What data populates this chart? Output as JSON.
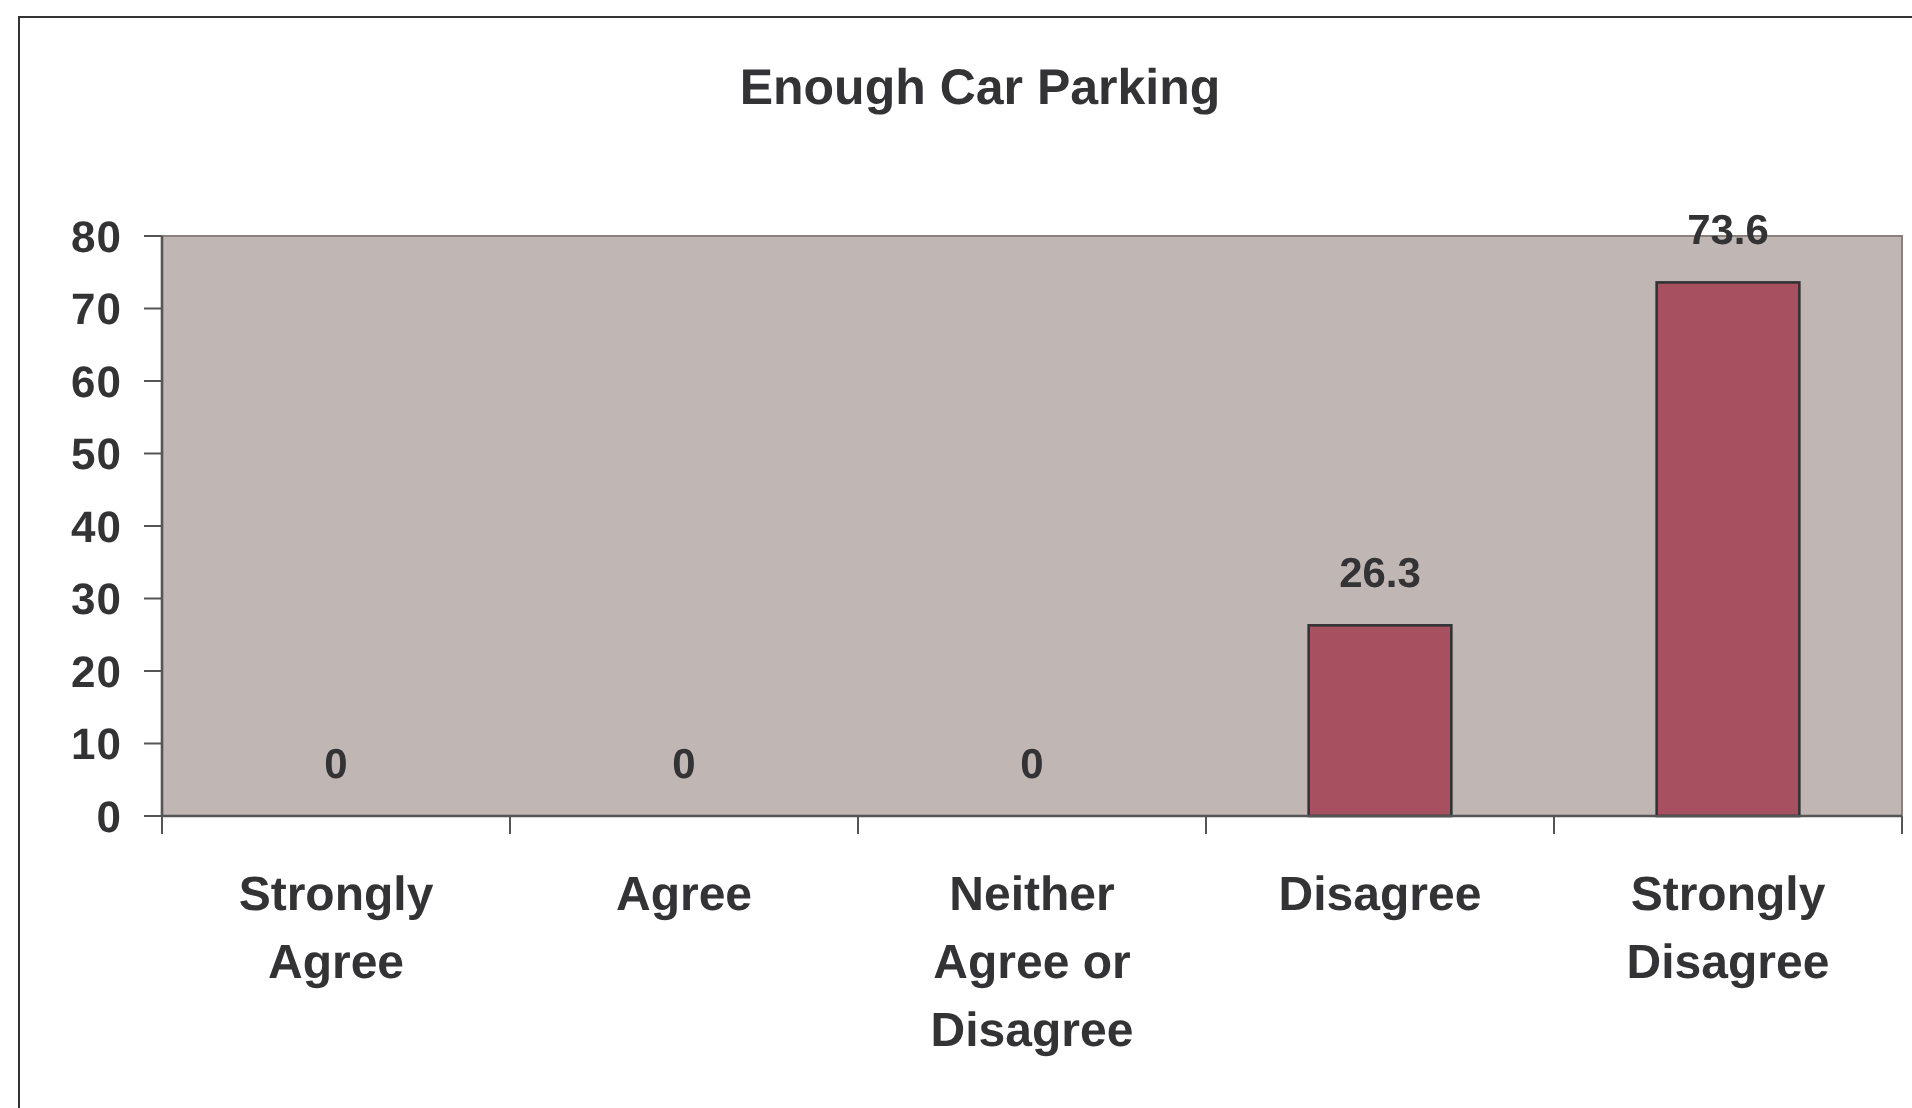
{
  "chart_data": {
    "type": "bar",
    "title": "Enough Car Parking",
    "categories": [
      "Strongly Agree",
      "Agree",
      "Neither Agree or Disagree",
      "Disagree",
      "Strongly Disagree"
    ],
    "values": [
      0,
      0,
      0,
      26.3,
      73.6
    ],
    "color": "#a65060",
    "ylim": [
      0,
      80
    ],
    "yticks": [
      0,
      10,
      20,
      30,
      40,
      50,
      60,
      70,
      80
    ],
    "data_labels": true
  }
}
